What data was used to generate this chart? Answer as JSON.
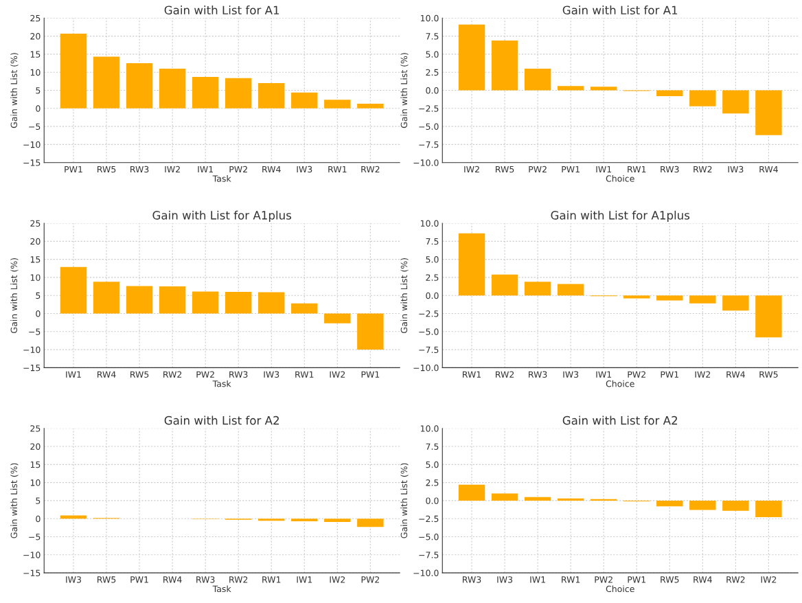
{
  "chart_data": [
    {
      "type": "bar",
      "title": "Gain with List for A1",
      "xlabel": "Task",
      "ylabel": "Gain with List (%)",
      "categories": [
        "PW1",
        "RW5",
        "RW3",
        "IW2",
        "IW1",
        "PW2",
        "RW4",
        "IW3",
        "RW1",
        "RW2"
      ],
      "values": [
        20.7,
        14.3,
        12.5,
        11.0,
        8.7,
        8.4,
        7.0,
        4.4,
        2.4,
        1.3
      ],
      "color": "#ffab00",
      "ylim": [
        -15,
        25
      ],
      "yticks": [
        -15,
        -10,
        -5,
        0,
        5,
        10,
        15,
        20,
        25
      ],
      "grid": true
    },
    {
      "type": "bar",
      "title": "Gain with List for A1",
      "xlabel": "Choice",
      "ylabel": "Gain with List (%)",
      "categories": [
        "IW2",
        "RW5",
        "PW2",
        "PW1",
        "IW1",
        "RW1",
        "RW3",
        "RW2",
        "IW3",
        "RW4"
      ],
      "values": [
        9.1,
        6.9,
        3.0,
        0.6,
        0.5,
        -0.1,
        -0.8,
        -2.2,
        -3.2,
        -6.2
      ],
      "color": "#ffab00",
      "ylim": [
        -10,
        10
      ],
      "yticks": [
        {
          "value": -10,
          "label": "−10.0"
        },
        {
          "value": -7.5,
          "label": "−7.5"
        },
        {
          "value": -5,
          "label": "−5.0"
        },
        {
          "value": -2.5,
          "label": "−2.5"
        },
        {
          "value": 0,
          "label": "0.0"
        },
        {
          "value": 2.5,
          "label": "2.5"
        },
        {
          "value": 5,
          "label": "5.0"
        },
        {
          "value": 7.5,
          "label": "7.5"
        },
        {
          "value": 10,
          "label": "10.0"
        }
      ],
      "grid": true
    },
    {
      "type": "bar",
      "title": "Gain with List for A1plus",
      "xlabel": "Task",
      "ylabel": "Gain with List (%)",
      "categories": [
        "IW1",
        "RW4",
        "RW5",
        "RW2",
        "PW2",
        "RW3",
        "IW3",
        "RW1",
        "IW2",
        "PW1"
      ],
      "values": [
        12.9,
        8.8,
        7.6,
        7.5,
        6.1,
        6.0,
        5.9,
        2.8,
        -2.7,
        -10.0
      ],
      "color": "#ffab00",
      "ylim": [
        -15,
        25
      ],
      "yticks": [
        -15,
        -10,
        -5,
        0,
        5,
        10,
        15,
        20,
        25
      ],
      "grid": true
    },
    {
      "type": "bar",
      "title": "Gain with List for A1plus",
      "xlabel": "Choice",
      "ylabel": "Gain with List (%)",
      "categories": [
        "RW1",
        "RW2",
        "RW3",
        "IW3",
        "IW1",
        "PW2",
        "PW1",
        "IW2",
        "RW4",
        "RW5"
      ],
      "values": [
        8.6,
        2.9,
        1.9,
        1.6,
        -0.1,
        -0.4,
        -0.7,
        -1.1,
        -2.1,
        -5.8
      ],
      "color": "#ffab00",
      "ylim": [
        -10,
        10
      ],
      "yticks": [
        {
          "value": -10,
          "label": "−10.0"
        },
        {
          "value": -7.5,
          "label": "−7.5"
        },
        {
          "value": -5,
          "label": "−5.0"
        },
        {
          "value": -2.5,
          "label": "−2.5"
        },
        {
          "value": 0,
          "label": "0.0"
        },
        {
          "value": 2.5,
          "label": "2.5"
        },
        {
          "value": 5,
          "label": "5.0"
        },
        {
          "value": 7.5,
          "label": "7.5"
        },
        {
          "value": 10,
          "label": "10.0"
        }
      ],
      "grid": true
    },
    {
      "type": "bar",
      "title": "Gain with List for A2",
      "xlabel": "Task",
      "ylabel": "Gain with List (%)",
      "categories": [
        "IW3",
        "RW5",
        "PW1",
        "RW4",
        "RW3",
        "RW2",
        "RW1",
        "IW1",
        "IW2",
        "PW2"
      ],
      "values": [
        0.9,
        0.2,
        0,
        0,
        -0.1,
        -0.3,
        -0.6,
        -0.7,
        -0.9,
        -2.3
      ],
      "color": "#ffab00",
      "ylim": [
        -15,
        25
      ],
      "yticks": [
        -15,
        -10,
        -5,
        0,
        5,
        10,
        15,
        20,
        25
      ],
      "grid": true
    },
    {
      "type": "bar",
      "title": "Gain with List for A2",
      "xlabel": "Choice",
      "ylabel": "Gain with List (%)",
      "categories": [
        "RW3",
        "IW3",
        "IW1",
        "RW1",
        "PW2",
        "PW1",
        "RW5",
        "RW4",
        "RW2",
        "IW2"
      ],
      "values": [
        2.2,
        1.0,
        0.5,
        0.3,
        0.2,
        -0.1,
        -0.8,
        -1.3,
        -1.4,
        -2.3
      ],
      "color": "#ffab00",
      "ylim": [
        -10,
        10
      ],
      "yticks": [
        {
          "value": -10,
          "label": "−10.0"
        },
        {
          "value": -7.5,
          "label": "−7.5"
        },
        {
          "value": -5,
          "label": "−5.0"
        },
        {
          "value": -2.5,
          "label": "−2.5"
        },
        {
          "value": 0,
          "label": "0.0"
        },
        {
          "value": 2.5,
          "label": "2.5"
        },
        {
          "value": 5,
          "label": "5.0"
        },
        {
          "value": 7.5,
          "label": "7.5"
        },
        {
          "value": 10,
          "label": "10.0"
        }
      ],
      "grid": true
    }
  ]
}
